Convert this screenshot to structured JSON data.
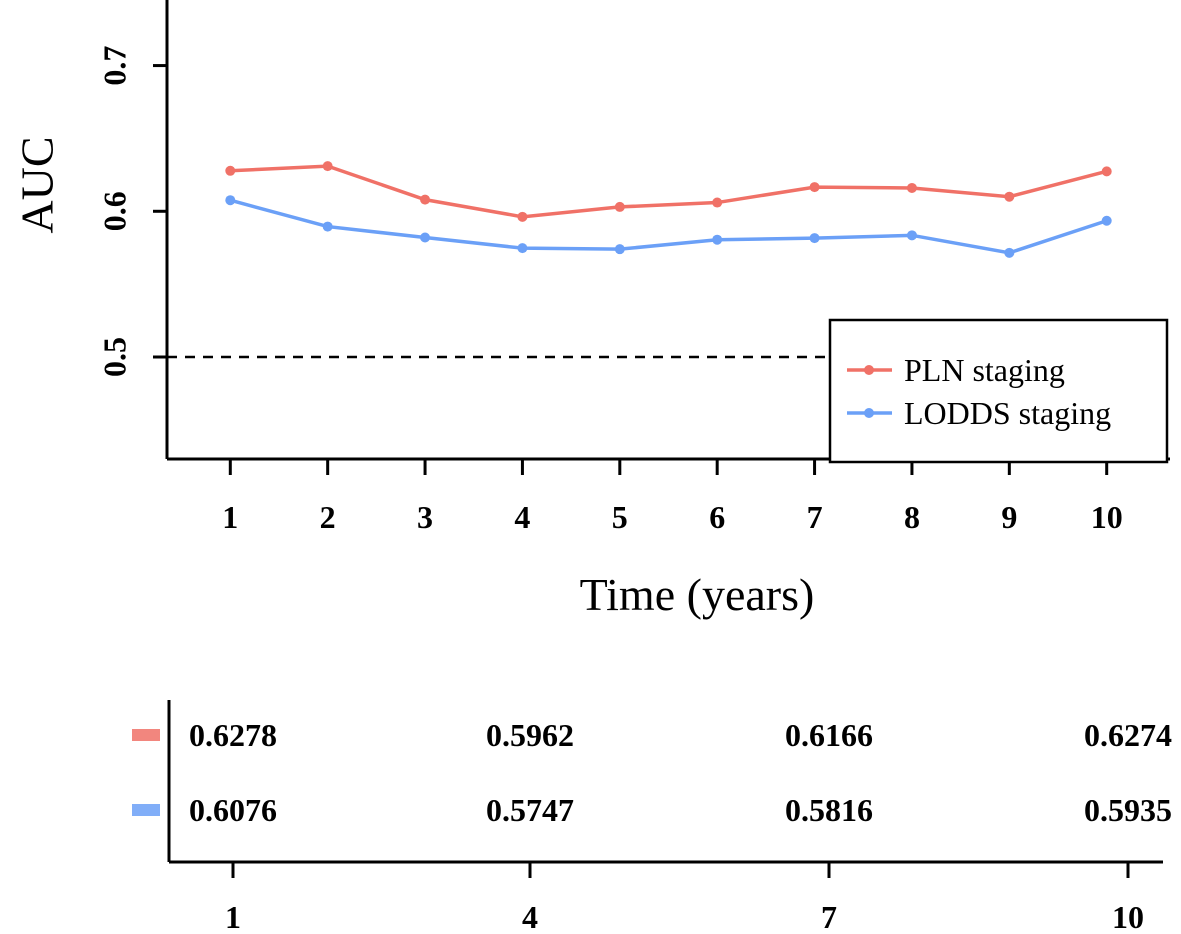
{
  "chart_data": [
    {
      "type": "line",
      "xlabel": "Time (years)",
      "ylabel": "AUC",
      "x": [
        1,
        2,
        3,
        4,
        5,
        6,
        7,
        8,
        9,
        10
      ],
      "xlim": [
        0.35,
        10.65
      ],
      "ylim": [
        0.43,
        0.745
      ],
      "yticks": [
        0.5,
        0.6,
        0.7
      ],
      "ytick_labels": [
        "0.5",
        "0.6",
        "0.7"
      ],
      "xtick_labels": [
        "1",
        "2",
        "3",
        "4",
        "5",
        "6",
        "7",
        "8",
        "9",
        "10"
      ],
      "reference_line": {
        "y": 0.5,
        "style": "dashed"
      },
      "legend_position": "bottom-right",
      "series": [
        {
          "name": "PLN staging",
          "color": "#F07167",
          "values": [
            0.6278,
            0.631,
            0.608,
            0.5962,
            0.603,
            0.606,
            0.6166,
            0.616,
            0.61,
            0.6274
          ]
        },
        {
          "name": "LODDS staging",
          "color": "#6BA0F7",
          "values": [
            0.6076,
            0.5895,
            0.582,
            0.5747,
            0.574,
            0.5805,
            0.5816,
            0.5835,
            0.5715,
            0.5935
          ]
        }
      ]
    },
    {
      "type": "table",
      "columns": [
        "1",
        "4",
        "7",
        "10"
      ],
      "rows": [
        {
          "series": "PLN staging",
          "color": "#F07167",
          "values": [
            "0.6278",
            "0.5962",
            "0.6166",
            "0.6274"
          ]
        },
        {
          "series": "LODDS staging",
          "color": "#6BA0F7",
          "values": [
            "0.6076",
            "0.5747",
            "0.5816",
            "0.5935"
          ]
        }
      ]
    }
  ]
}
